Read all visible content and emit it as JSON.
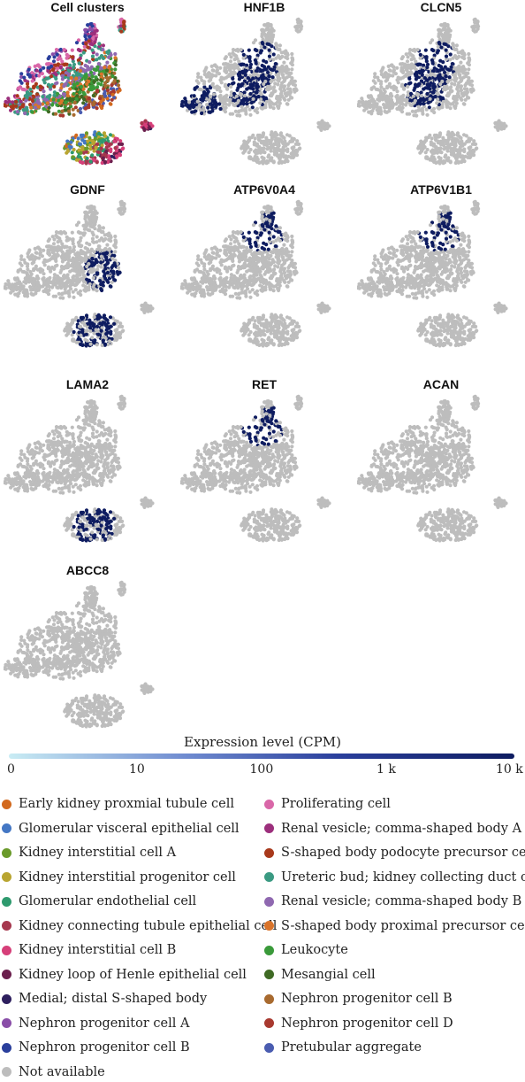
{
  "chart_data": [
    {
      "type": "scatter",
      "title": "Cell clusters",
      "coloring": "cluster"
    },
    {
      "type": "scatter",
      "title": "HNF1B",
      "coloring": "expression",
      "expressed_regions": [
        "upper-center",
        "center",
        "left-arm"
      ]
    },
    {
      "type": "scatter",
      "title": "CLCN5",
      "coloring": "expression",
      "expressed_regions": [
        "upper-center",
        "center"
      ]
    },
    {
      "type": "scatter",
      "title": "GDNF",
      "coloring": "expression",
      "expressed_regions": [
        "right",
        "lower"
      ]
    },
    {
      "type": "scatter",
      "title": "ATP6V0A4",
      "coloring": "expression",
      "expressed_regions": [
        "upper-right-stalk"
      ]
    },
    {
      "type": "scatter",
      "title": "ATP6V1B1",
      "coloring": "expression",
      "expressed_regions": [
        "upper-right-stalk"
      ]
    },
    {
      "type": "scatter",
      "title": "LAMA2",
      "coloring": "expression",
      "expressed_regions": [
        "bottom-blob"
      ]
    },
    {
      "type": "scatter",
      "title": "RET",
      "coloring": "expression",
      "expressed_regions": [
        "upper-right-stalk"
      ]
    },
    {
      "type": "scatter",
      "title": "ACAN",
      "coloring": "expression",
      "expressed_regions": []
    },
    {
      "type": "scatter",
      "title": "ABCC8",
      "coloring": "expression",
      "expressed_regions": []
    }
  ],
  "colorbar": {
    "title": "Expression level (CPM)",
    "ticks": [
      "0",
      "10",
      "100",
      "1 k",
      "10 k"
    ],
    "scale": "log",
    "color_low": "#c9ecf4",
    "color_high": "#0e1c60"
  },
  "base_color": "#bdbdbd",
  "legend": [
    {
      "label": "Early kidney proxmial tubule cell",
      "color": "#d2691e"
    },
    {
      "label": "Glomerular visceral epithelial cell",
      "color": "#4477c4"
    },
    {
      "label": "Kidney interstitial cell A",
      "color": "#6a9a2a"
    },
    {
      "label": "Kidney interstitial progenitor cell",
      "color": "#b9a531"
    },
    {
      "label": "Glomerular endothelial cell",
      "color": "#2e9a6e"
    },
    {
      "label": "Kidney connecting tubule epithelial cell",
      "color": "#a6384e"
    },
    {
      "label": "Kidney interstitial cell B",
      "color": "#d63f79"
    },
    {
      "label": "Kidney loop of Henle epithelial cell",
      "color": "#6b1f4d"
    },
    {
      "label": "Medial; distal S-shaped body",
      "color": "#2e1f5e"
    },
    {
      "label": "Nephron progenitor cell A",
      "color": "#8a4ea8"
    },
    {
      "label": "Nephron progenitor cell B",
      "color": "#2a3f9c"
    },
    {
      "label": "Not available",
      "color": "#bdbdbd"
    },
    {
      "label": "Proliferating cell",
      "color": "#d967a8"
    },
    {
      "label": "Renal vesicle; comma-shaped body A",
      "color": "#9c2f7c"
    },
    {
      "label": "S-shaped body podocyte precursor cell",
      "color": "#a8391b"
    },
    {
      "label": "Ureteric bud; kidney collecting duct cell",
      "color": "#3a9a82"
    },
    {
      "label": "Renal vesicle; comma-shaped body B",
      "color": "#8f68b0"
    },
    {
      "label": "S-shaped body proximal precursor cell",
      "color": "#d9742b"
    },
    {
      "label": "Leukocyte",
      "color": "#3a9a3a"
    },
    {
      "label": "Mesangial cell",
      "color": "#3f6a24"
    },
    {
      "label": "Nephron progenitor cell B",
      "color": "#a86a2f"
    },
    {
      "label": "Nephron progenitor cell D",
      "color": "#a8392f"
    },
    {
      "label": "Pretubular aggregate",
      "color": "#4a5cb0"
    }
  ]
}
